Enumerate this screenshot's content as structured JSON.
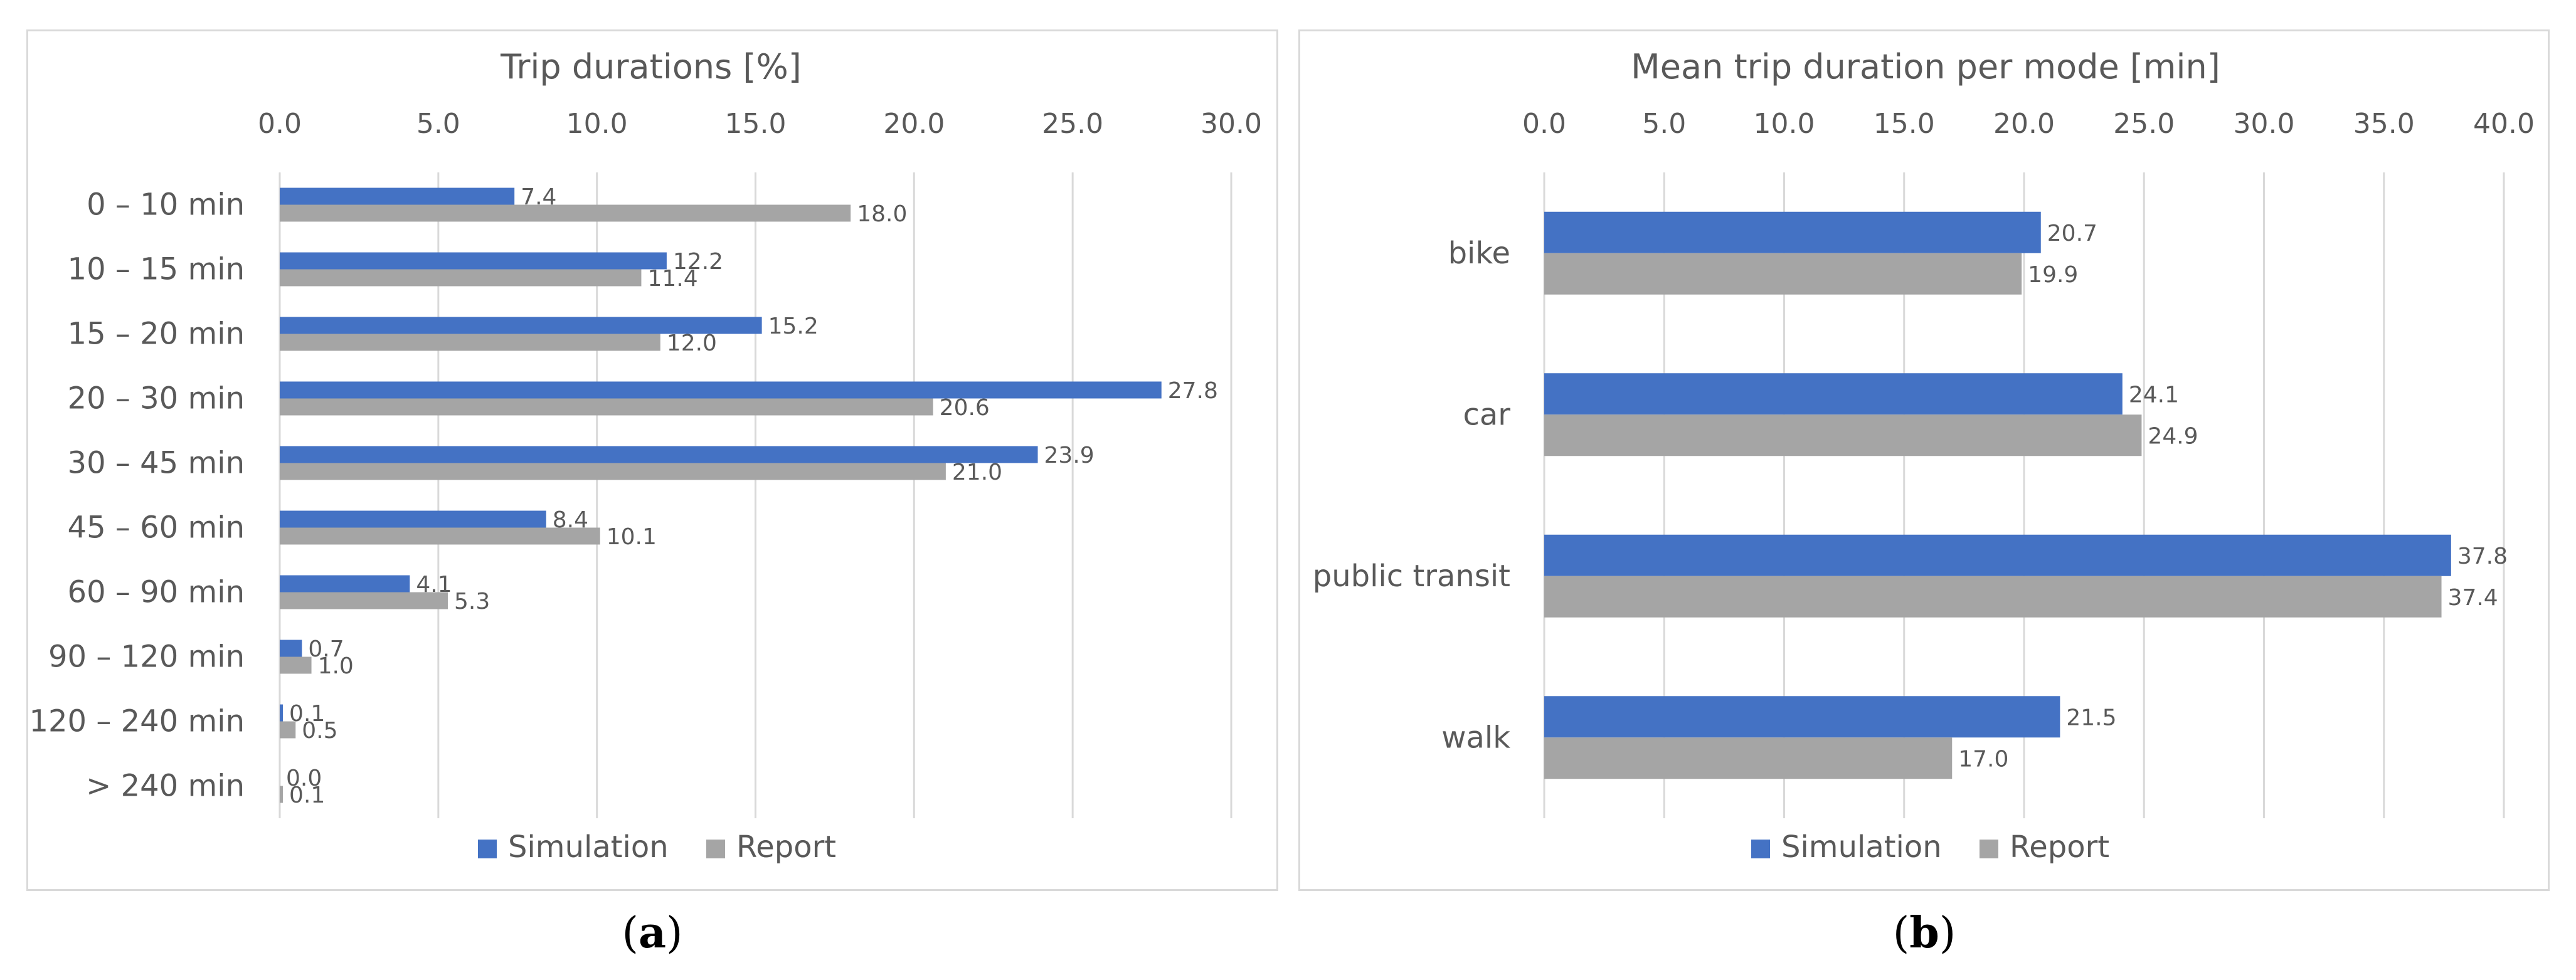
{
  "colors": {
    "simulation": "#4472C4",
    "report": "#A5A5A5",
    "grid": "#d9d9d9",
    "text": "#595959"
  },
  "legend": {
    "simulation": "Simulation",
    "report": "Report"
  },
  "sublabels": {
    "a": "a",
    "b": "b",
    "open": "(",
    "close": ")"
  },
  "chart_data": [
    {
      "type": "bar",
      "orientation": "horizontal",
      "title": "Trip durations [%]",
      "xlim": [
        0,
        30
      ],
      "ticks": [
        "0.0",
        "5.0",
        "10.0",
        "15.0",
        "20.0",
        "25.0",
        "30.0"
      ],
      "categories": [
        "0 – 10 min",
        "10 – 15 min",
        "15 – 20 min",
        "20 – 30 min",
        "30 – 45 min",
        "45 – 60 min",
        "60 – 90 min",
        "90 – 120 min",
        "120 – 240 min",
        "> 240 min"
      ],
      "series": [
        {
          "name": "Simulation",
          "values": [
            7.4,
            12.2,
            15.2,
            27.8,
            23.9,
            8.4,
            4.1,
            0.7,
            0.1,
            0.0
          ]
        },
        {
          "name": "Report",
          "values": [
            18.0,
            11.4,
            12.0,
            20.6,
            21.0,
            10.1,
            5.3,
            1.0,
            0.5,
            0.1
          ]
        }
      ],
      "legend_position": "bottom"
    },
    {
      "type": "bar",
      "orientation": "horizontal",
      "title": "Mean trip duration per mode [min]",
      "xlim": [
        0,
        40
      ],
      "ticks": [
        "0.0",
        "5.0",
        "10.0",
        "15.0",
        "20.0",
        "25.0",
        "30.0",
        "35.0",
        "40.0"
      ],
      "categories": [
        "bike",
        "car",
        "public transit",
        "walk"
      ],
      "series": [
        {
          "name": "Simulation",
          "values": [
            20.7,
            24.1,
            37.8,
            21.5
          ]
        },
        {
          "name": "Report",
          "values": [
            19.9,
            24.9,
            37.4,
            17.0
          ]
        }
      ],
      "legend_position": "bottom"
    }
  ]
}
